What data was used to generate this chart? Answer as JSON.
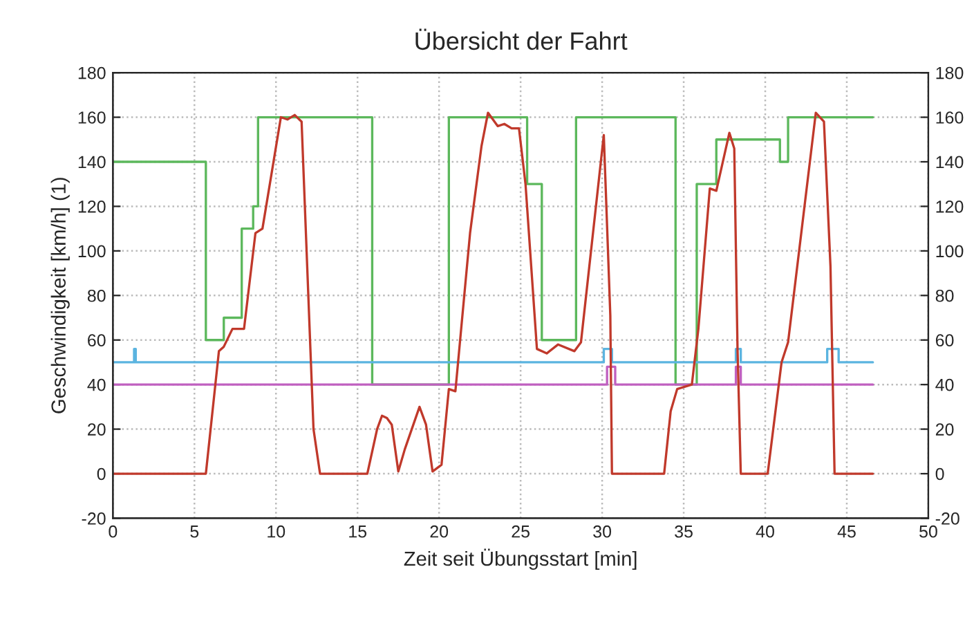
{
  "chart_data": {
    "type": "line",
    "title": "Übersicht der Fahrt",
    "xlabel": "Zeit seit Übungsstart [min]",
    "ylabel": "Geschwindigkeit [km/h] (1)",
    "xlim": [
      0,
      50
    ],
    "xticks": [
      0,
      5,
      10,
      15,
      20,
      25,
      30,
      35,
      40,
      45,
      50
    ],
    "ylim": [
      -20,
      180
    ],
    "yticks": [
      -20,
      0,
      20,
      40,
      60,
      80,
      100,
      120,
      140,
      160,
      180
    ],
    "y2lim": [
      -20,
      180
    ],
    "y2ticks": [
      -20,
      0,
      20,
      40,
      60,
      80,
      100,
      120,
      140,
      160,
      180
    ],
    "grid": true,
    "legend": false,
    "marker": "none",
    "line_style": "solid",
    "series": [
      {
        "type": "step",
        "color": "#5cb85c",
        "x": [
          0,
          5.7,
          6.8,
          7.9,
          8.6,
          8.9,
          15.9,
          20.6,
          25.4,
          26.3,
          28.4,
          34.5,
          35.8,
          37.0,
          40.9,
          41.4,
          46.6
        ],
        "values": [
          140,
          60,
          70,
          110,
          120,
          160,
          40,
          160,
          130,
          60,
          160,
          40,
          130,
          150,
          140,
          160,
          160
        ]
      },
      {
        "type": "step",
        "color": "#5bb4e0",
        "x": [
          0,
          1.3,
          1.4,
          30.1,
          30.6,
          38.2,
          38.5,
          43.8,
          44.5,
          46.6
        ],
        "values": [
          50,
          56,
          50,
          56,
          50,
          56,
          50,
          56,
          50,
          50
        ]
      },
      {
        "type": "step",
        "color": "#c060c0",
        "x": [
          0,
          30.3,
          30.8,
          38.2,
          38.5,
          46.6
        ],
        "values": [
          40,
          48,
          40,
          48,
          40,
          40
        ]
      },
      {
        "color": "#c0392b",
        "x": [
          0,
          5.7,
          6.5,
          6.8,
          7.33,
          8.04,
          8.74,
          9.17,
          10.3,
          10.7,
          11.15,
          11.57,
          12.3,
          12.7,
          15.6,
          16.2,
          16.5,
          16.8,
          17.1,
          17.5,
          17.9,
          18.8,
          19.2,
          19.6,
          20.15,
          20.6,
          21.0,
          21.9,
          22.6,
          23.0,
          23.6,
          24.0,
          24.45,
          24.9,
          25.3,
          26.0,
          26.6,
          27.3,
          28.3,
          28.7,
          30.1,
          30.5,
          30.6,
          33.8,
          34.2,
          34.6,
          35.5,
          35.9,
          36.6,
          37.0,
          37.8,
          38.1,
          38.3,
          38.5,
          40.15,
          41.0,
          41.4,
          43.1,
          43.6,
          44.0,
          44.25,
          46.6
        ],
        "values": [
          0,
          0,
          55,
          57,
          65,
          65,
          108,
          110,
          160,
          159,
          161,
          158,
          20,
          0,
          0,
          20,
          26,
          25,
          22,
          1,
          11,
          30,
          22,
          1,
          4,
          38,
          37,
          108,
          147,
          162,
          156,
          157,
          155,
          155,
          130,
          56,
          54,
          58,
          55,
          59,
          152,
          71,
          0,
          0,
          28,
          38,
          40,
          65,
          128,
          127,
          153,
          146,
          56,
          0,
          0,
          50,
          59,
          162,
          158,
          93,
          0,
          0
        ]
      }
    ]
  }
}
